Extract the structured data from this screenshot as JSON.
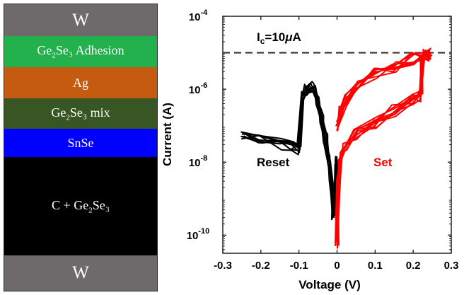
{
  "stack": {
    "layers": [
      {
        "label": "W",
        "sub": "",
        "rest": "",
        "color": "#6e6a6b",
        "big": true
      },
      {
        "label": "Ge",
        "sub": "2",
        "rest": "Se₃ Adhesion",
        "color": "#22b14c",
        "big": false
      },
      {
        "label": "Ag",
        "sub": "",
        "rest": "",
        "color": "#c55a11",
        "big": false
      },
      {
        "label": "Ge",
        "sub": "2",
        "rest": "Se₃ mix",
        "color": "#375623",
        "big": false
      },
      {
        "label": "SnSe",
        "sub": "",
        "rest": "",
        "color": "#0000ff",
        "big": false
      },
      {
        "label": "C + Ge",
        "sub": "2",
        "rest": "Se₃",
        "color": "#000000",
        "big": false
      },
      {
        "label": "W",
        "sub": "",
        "rest": "",
        "color": "#6e6a6b",
        "big": true
      }
    ]
  },
  "chart_data": {
    "type": "line",
    "xlabel": "Voltage (V)",
    "ylabel": "Current (A)",
    "xlim": [
      -0.3,
      0.3
    ],
    "ylim_log10": [
      -10.5,
      -4
    ],
    "y_scale": "log",
    "xticks": [
      "-0.3",
      "-0.2",
      "-0.1",
      "0",
      "0.1",
      "0.2",
      "0.3"
    ],
    "xtick_values": [
      -0.3,
      -0.2,
      -0.1,
      0,
      0.1,
      0.2,
      0.3
    ],
    "yticks": [
      {
        "base": "10",
        "exp": "-4",
        "value": -4
      },
      {
        "base": "10",
        "exp": "-6",
        "value": -6
      },
      {
        "base": "10",
        "exp": "-8",
        "value": -8
      },
      {
        "base": "10",
        "exp": "-10",
        "value": -10
      }
    ],
    "compliance": {
      "label_main": "I",
      "label_sub": "c",
      "label_rest": "=10",
      "label_mu": "μ",
      "label_unit": "A",
      "log10_value": -5
    },
    "series": [
      {
        "name": "Reset",
        "color": "#000000",
        "x": [
          -0.25,
          -0.2,
          -0.15,
          -0.12,
          -0.1,
          -0.09,
          -0.08,
          -0.07,
          -0.06,
          -0.05,
          -0.04,
          -0.03,
          -0.02,
          -0.015,
          -0.01,
          -0.005,
          0
        ],
        "y_log10": [
          -7.2,
          -7.35,
          -7.5,
          -7.6,
          -7.7,
          -6.2,
          -6.0,
          -5.95,
          -6.0,
          -6.3,
          -6.8,
          -7.4,
          -8.0,
          -8.6,
          -9.4,
          -9.2,
          -8.0
        ]
      },
      {
        "name": "Set",
        "color": "#ff0000",
        "x": [
          0,
          0.005,
          0.01,
          0.02,
          0.05,
          0.1,
          0.15,
          0.2,
          0.22,
          0.225,
          0.23,
          0.24,
          0.245,
          0.24,
          0.2,
          0.15,
          0.1,
          0.05,
          0.02,
          0.01,
          0
        ],
        "y_log10": [
          -10.3,
          -8.5,
          -7.8,
          -7.6,
          -7.2,
          -6.9,
          -6.6,
          -6.3,
          -6.2,
          -5.2,
          -5.0,
          -5.0,
          -5.02,
          -5.05,
          -5.15,
          -5.35,
          -5.6,
          -5.95,
          -6.3,
          -6.6,
          -7.0
        ]
      }
    ],
    "legend": {
      "reset_label": "Reset",
      "set_label": "Set"
    }
  }
}
